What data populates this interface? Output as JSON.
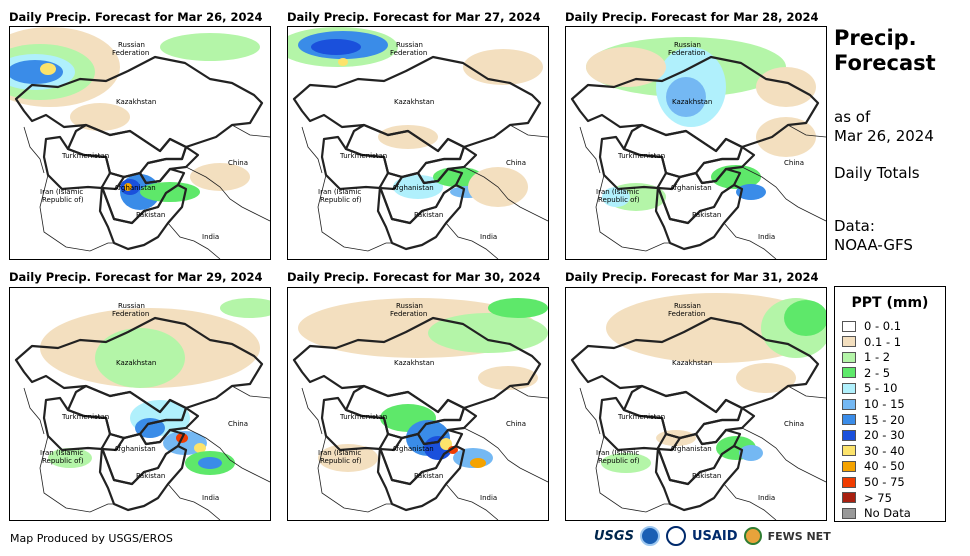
{
  "panels": [
    {
      "title": "Daily Precip. Forecast for Mar 26, 2024"
    },
    {
      "title": "Daily Precip. Forecast for Mar 27, 2024"
    },
    {
      "title": "Daily Precip. Forecast for Mar 28, 2024"
    },
    {
      "title": "Daily Precip. Forecast for Mar 29, 2024"
    },
    {
      "title": "Daily Precip. Forecast for Mar 30, 2024"
    },
    {
      "title": "Daily Precip. Forecast for Mar 31, 2024"
    }
  ],
  "map_labels": {
    "russia_1": "Russian",
    "russia_2": "Federation",
    "kazakhstan": "Kazakhstan",
    "turkmenistan": "Turkmenistan",
    "china": "China",
    "iran_1": "Iran  (Islamic",
    "iran_2": "Republic of)",
    "afghanistan": "Afghanistan",
    "pakistan": "Pakistan",
    "india": "India"
  },
  "side": {
    "title_line1": "Precip.",
    "title_line2": "Forecast",
    "as_of": "as of",
    "date": "Mar 26, 2024",
    "totals": "Daily Totals",
    "data_label": "Data:",
    "data_source": "NOAA-GFS"
  },
  "legend": {
    "title": "PPT (mm)",
    "items": [
      {
        "label": "0 - 0.1",
        "color": "#ffffff"
      },
      {
        "label": "0.1 - 1",
        "color": "#f3dfbf"
      },
      {
        "label": "1 - 2",
        "color": "#b4f5a8"
      },
      {
        "label": "2 - 5",
        "color": "#5ee86a"
      },
      {
        "label": "5 - 10",
        "color": "#b0f0fc"
      },
      {
        "label": "10 - 15",
        "color": "#74b8f3"
      },
      {
        "label": "15 - 20",
        "color": "#3a8ce8"
      },
      {
        "label": "20 - 30",
        "color": "#1a50dc"
      },
      {
        "label": "30 - 40",
        "color": "#fce36b"
      },
      {
        "label": "40 - 50",
        "color": "#f5a300"
      },
      {
        "label": "50 - 75",
        "color": "#f03c00"
      },
      {
        "label": "> 75",
        "color": "#a82010"
      },
      {
        "label": "No Data",
        "color": "#999999"
      }
    ]
  },
  "footer": {
    "credit": "Map Produced by USGS/EROS",
    "logo_usgs": "USGS",
    "logo_usaid": "USAID",
    "logo_fews": "FEWS NET"
  }
}
